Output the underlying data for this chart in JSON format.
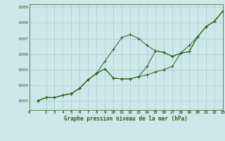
{
  "title": "Graphe pression niveau de la mer (hPa)",
  "background_color": "#cce8e8",
  "grid_color": "#aacccc",
  "line_color": "#2d6020",
  "xlim": [
    0,
    23
  ],
  "ylim": [
    1002.4,
    1009.2
  ],
  "xticks": [
    0,
    2,
    3,
    4,
    5,
    6,
    7,
    8,
    9,
    10,
    11,
    12,
    13,
    14,
    15,
    16,
    17,
    18,
    19,
    20,
    21,
    22,
    23
  ],
  "xtick_labels": [
    "0",
    "2",
    "3",
    "4",
    "5",
    "6",
    "7",
    "8",
    "9",
    "10",
    "11",
    "12",
    "13",
    "14",
    "15",
    "16",
    "17",
    "18",
    "19",
    "20",
    "21",
    "22",
    "23"
  ],
  "yticks": [
    1003,
    1004,
    1005,
    1006,
    1007,
    1008,
    1009
  ],
  "x_values": [
    1,
    2,
    3,
    4,
    5,
    6,
    7,
    8,
    9,
    10,
    11,
    12,
    13,
    14,
    15,
    16,
    17,
    18,
    19,
    20,
    21,
    22,
    23
  ],
  "series": [
    [
      1003.0,
      1003.2,
      1003.2,
      1003.35,
      1003.45,
      1003.8,
      1004.35,
      1004.75,
      1005.55,
      1006.3,
      1007.05,
      1007.25,
      1007.0,
      1006.55,
      1006.2,
      1006.1,
      1005.85,
      1006.05,
      1006.15,
      1007.1,
      1007.75,
      1008.1,
      1008.75
    ],
    [
      1003.0,
      1003.2,
      1003.2,
      1003.35,
      1003.45,
      1003.8,
      1004.35,
      1004.75,
      1005.05,
      1004.45,
      1004.4,
      1004.4,
      1004.55,
      1005.2,
      1006.2,
      1006.1,
      1005.85,
      1006.05,
      1006.15,
      1007.1,
      1007.75,
      1008.1,
      1008.75
    ],
    [
      1003.0,
      1003.2,
      1003.2,
      1003.35,
      1003.45,
      1003.8,
      1004.35,
      1004.75,
      1005.05,
      1004.45,
      1004.4,
      1004.4,
      1004.55,
      1004.65,
      1004.85,
      1005.0,
      1005.2,
      1006.05,
      1006.55,
      1007.1,
      1007.75,
      1008.1,
      1008.75
    ]
  ]
}
